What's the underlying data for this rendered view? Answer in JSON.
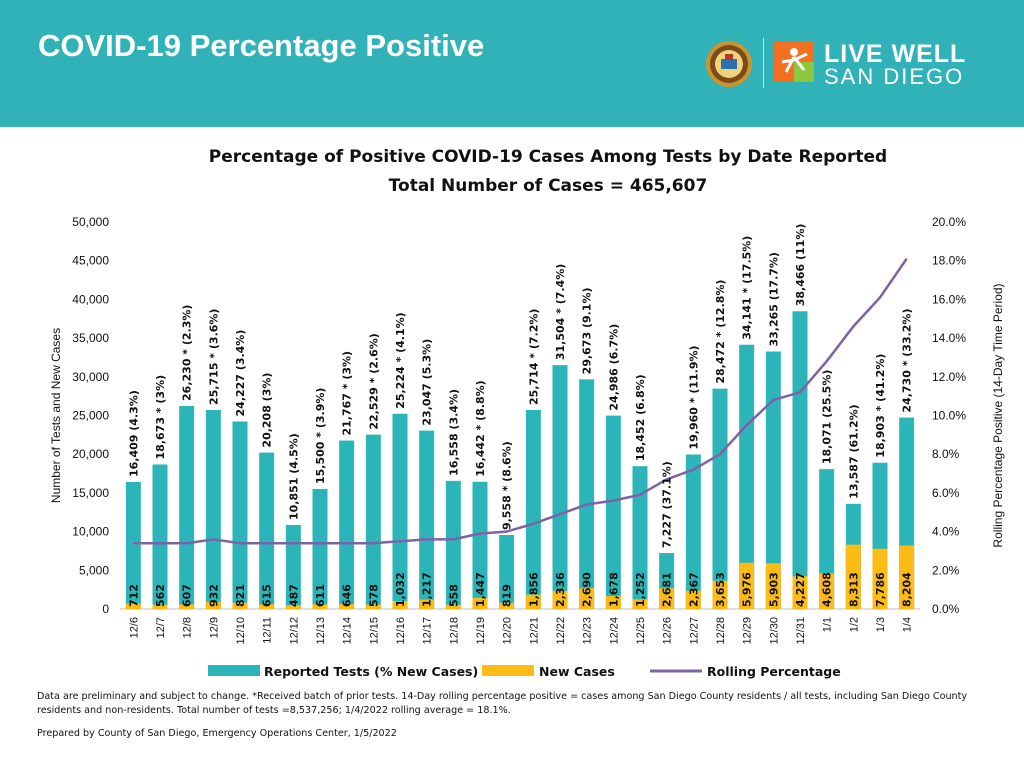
{
  "header": {
    "title": "COVID-19 Percentage Positive",
    "brand_line1": "LIVE WELL",
    "brand_line2": "SAN DIEGO"
  },
  "colors": {
    "banner": "#30b2b8",
    "tests_bar": "#2bb5b9",
    "new_cases_bar": "#fdbb16",
    "rolling_line": "#7d62a8"
  },
  "chart_data": {
    "type": "bar",
    "title": "Percentage of Positive COVID-19 Cases Among Tests by Date Reported",
    "subtitle": "Total Number of Cases = 465,607",
    "ylabel": "Number of Tests and New Cases",
    "y2label": "Rolling Percentage Positive (14-Day Time Period)",
    "ylim": [
      0,
      50000
    ],
    "y_ticks": [
      "0",
      "5,000",
      "10,000",
      "15,000",
      "20,000",
      "25,000",
      "30,000",
      "35,000",
      "40,000",
      "45,000",
      "50,000"
    ],
    "y2lim": [
      0,
      20
    ],
    "y2_ticks": [
      "0.0%",
      "2.0%",
      "4.0%",
      "6.0%",
      "8.0%",
      "10.0%",
      "12.0%",
      "14.0%",
      "16.0%",
      "18.0%",
      "20.0%"
    ],
    "categories": [
      "12/6",
      "12/7",
      "12/8",
      "12/9",
      "12/10",
      "12/11",
      "12/12",
      "12/13",
      "12/14",
      "12/15",
      "12/16",
      "12/17",
      "12/18",
      "12/19",
      "12/20",
      "12/21",
      "12/22",
      "12/23",
      "12/24",
      "12/25",
      "12/26",
      "12/27",
      "12/28",
      "12/29",
      "12/30",
      "12/31",
      "1/1",
      "1/2",
      "1/3",
      "1/4"
    ],
    "series": [
      {
        "name": "Reported Tests (% New Cases)",
        "type": "bar",
        "values": [
          16409,
          18673,
          26230,
          25715,
          24227,
          20208,
          10851,
          15500,
          21767,
          22529,
          25224,
          23047,
          16558,
          16442,
          9558,
          25714,
          31504,
          29673,
          24986,
          18452,
          7227,
          19960,
          28472,
          34141,
          33265,
          38466,
          18071,
          13587,
          18903,
          24730
        ],
        "labels": [
          "16,409  (4.3%)",
          "18,673 * (3%)",
          "26,230 * (2.3%)",
          "25,715 * (3.6%)",
          "24,227  (3.4%)",
          "20,208  (3%)",
          "10,851  (4.5%)",
          "15,500 * (3.9%)",
          "21,767 * (3%)",
          "22,529 * (2.6%)",
          "25,224 * (4.1%)",
          "23,047  (5.3%)",
          "16,558  (3.4%)",
          "16,442 * (8.8%)",
          "9,558 * (8.6%)",
          "25,714 * (7.2%)",
          "31,504 * (7.4%)",
          "29,673  (9.1%)",
          "24,986  (6.7%)",
          "18,452  (6.8%)",
          "7,227  (37.1%)",
          "19,960 * (11.9%)",
          "28,472 * (12.8%)",
          "34,141 * (17.5%)",
          "33,265  (17.7%)",
          "38,466  (11%)",
          "18,071  (25.5%)",
          "13,587  (61.2%)",
          "18,903 * (41.2%)",
          "24,730 * (33.2%)"
        ]
      },
      {
        "name": "New Cases",
        "type": "bar",
        "values": [
          712,
          562,
          607,
          932,
          821,
          615,
          487,
          611,
          646,
          578,
          1032,
          1217,
          558,
          1447,
          819,
          1856,
          2336,
          2690,
          1678,
          1252,
          2681,
          2367,
          3653,
          5976,
          5903,
          4227,
          4608,
          8313,
          7786,
          8204
        ],
        "labels": [
          "712",
          "562",
          "607",
          "932",
          "821",
          "615",
          "487",
          "611",
          "646",
          "578",
          "1,032",
          "1,217",
          "558",
          "1,447",
          "819",
          "1,856",
          "2,336",
          "2,690",
          "1,678",
          "1,252",
          "2,681",
          "2,367",
          "3,653",
          "5,976",
          "5,903",
          "4,227",
          "4,608",
          "8,313",
          "7,786",
          "8,204"
        ]
      },
      {
        "name": "Rolling Percentage",
        "type": "line",
        "axis": "right",
        "values": [
          3.4,
          3.4,
          3.4,
          3.6,
          3.4,
          3.4,
          3.4,
          3.4,
          3.4,
          3.4,
          3.5,
          3.6,
          3.6,
          3.9,
          4.0,
          4.4,
          4.9,
          5.4,
          5.6,
          5.9,
          6.7,
          7.2,
          8.0,
          9.5,
          10.8,
          11.2,
          12.8,
          14.6,
          16.1,
          18.1
        ]
      }
    ],
    "legend_position": "bottom",
    "grid": false
  },
  "notes": {
    "line1": "Data are preliminary and subject to change. *Received batch of prior tests. 14-Day rolling percentage positive = cases among San Diego County residents / all tests, including San Diego County residents and non-residents. Total number of tests =8,537,256; 1/4/2022 rolling average = 18.1%.",
    "line2": "Prepared by County of San Diego, Emergency Operations Center, 1/5/2022"
  }
}
